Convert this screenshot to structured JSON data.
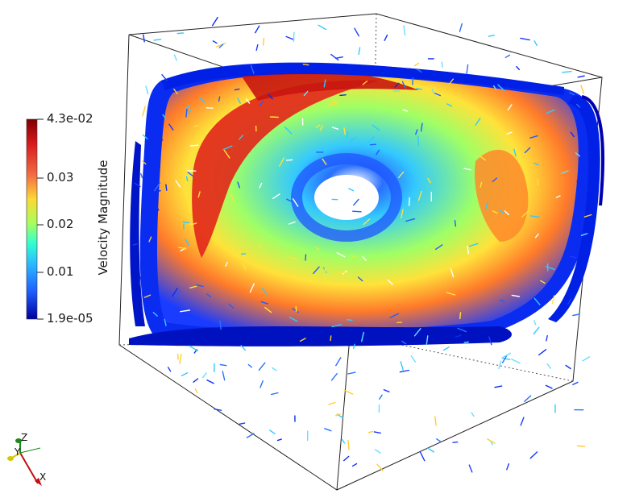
{
  "colorbar": {
    "title": "Velocity Magnitude",
    "ticks": [
      "4.3e-02",
      "0.03",
      "0.02",
      "0.01",
      "1.9e-05"
    ],
    "colormap": [
      "#7f0000",
      "#d7191c",
      "#f46d43",
      "#fdae61",
      "#ffff66",
      "#66ff99",
      "#33ccff",
      "#1f6fff",
      "#0000aa"
    ]
  },
  "orientation_axes": {
    "labels": {
      "z": "Z",
      "y": "Y",
      "x": "X"
    },
    "colors": {
      "z": "#1a8a1a",
      "y": "#d6c800",
      "x": "#c01010"
    }
  },
  "scene": {
    "description_colors": {
      "low": "#0000c8",
      "mid": "#33d6ff",
      "high": "#e01a1a"
    }
  }
}
